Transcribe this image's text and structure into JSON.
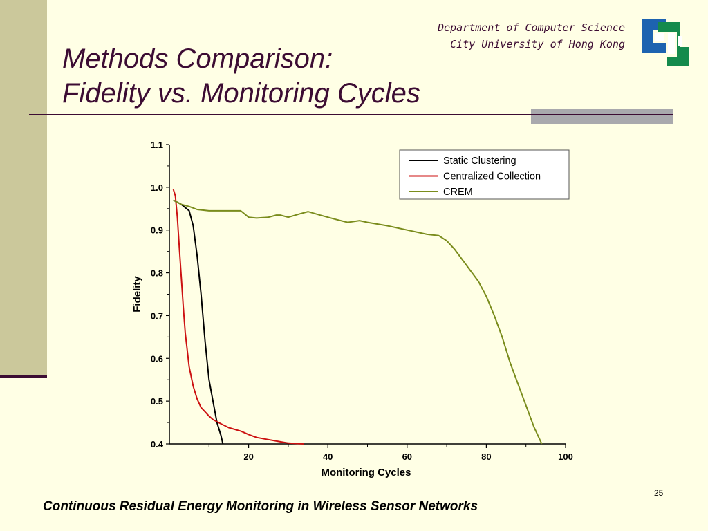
{
  "slide": {
    "title_line1": "Methods Comparison:",
    "title_line2": "Fidelity vs. Monitoring Cycles",
    "department_line1": "Department of Computer Science",
    "department_line2": "City University of Hong Kong",
    "page_number": "25",
    "footer": "Continuous Residual Energy Monitoring in Wireless Sensor Networks"
  },
  "colors": {
    "background": "#ffffe5",
    "title": "#3c0c33",
    "side_bar": "#cbc89b",
    "accent_bar": "#a9a9ad",
    "logo_blue": "#1d63b0",
    "logo_green": "#148a4c"
  },
  "chart_data": {
    "type": "line",
    "title": "",
    "xlabel": "Monitoring Cycles",
    "ylabel": "Fidelity",
    "xlim": [
      0,
      100
    ],
    "ylim": [
      0.4,
      1.1
    ],
    "x_ticks": [
      20,
      40,
      60,
      80,
      100
    ],
    "y_ticks": [
      0.4,
      0.5,
      0.6,
      0.7,
      0.8,
      0.9,
      1.0,
      1.1
    ],
    "grid": false,
    "legend_position": "top-right",
    "series": [
      {
        "name": "Static Clustering",
        "color": "#000000",
        "x": [
          1,
          3,
          5,
          6,
          7,
          8,
          9,
          10,
          11,
          12,
          13,
          13.5
        ],
        "y": [
          0.97,
          0.96,
          0.945,
          0.91,
          0.84,
          0.75,
          0.64,
          0.55,
          0.5,
          0.45,
          0.42,
          0.4
        ]
      },
      {
        "name": "Centralized Collection",
        "color": "#cc1111",
        "x": [
          1,
          1.5,
          2,
          2.5,
          3,
          3.5,
          4,
          5,
          6,
          7,
          8,
          9,
          10,
          11,
          13,
          15,
          18,
          20,
          22,
          25,
          28,
          30,
          34
        ],
        "y": [
          0.995,
          0.98,
          0.93,
          0.86,
          0.79,
          0.72,
          0.66,
          0.58,
          0.535,
          0.505,
          0.485,
          0.475,
          0.465,
          0.457,
          0.447,
          0.438,
          0.43,
          0.422,
          0.415,
          0.41,
          0.405,
          0.402,
          0.4
        ]
      },
      {
        "name": "CREM",
        "color": "#7a8c1c",
        "x": [
          1,
          3,
          5,
          7,
          10,
          15,
          18,
          20,
          22,
          25,
          27,
          28,
          30,
          33,
          35,
          38,
          40,
          42,
          45,
          48,
          50,
          55,
          60,
          65,
          68,
          70,
          72,
          74,
          76,
          78,
          80,
          82,
          84,
          86,
          88,
          90,
          92,
          94
        ],
        "y": [
          0.97,
          0.96,
          0.955,
          0.948,
          0.945,
          0.945,
          0.945,
          0.93,
          0.928,
          0.93,
          0.935,
          0.935,
          0.93,
          0.938,
          0.943,
          0.935,
          0.93,
          0.925,
          0.918,
          0.922,
          0.918,
          0.91,
          0.9,
          0.89,
          0.887,
          0.875,
          0.855,
          0.83,
          0.805,
          0.78,
          0.745,
          0.7,
          0.65,
          0.59,
          0.54,
          0.49,
          0.44,
          0.4
        ]
      }
    ]
  }
}
